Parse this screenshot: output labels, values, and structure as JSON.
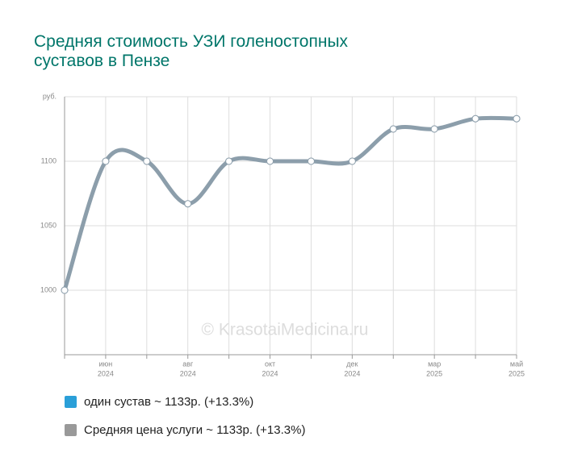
{
  "chart_data": {
    "type": "line",
    "title": "Средняя стоимость УЗИ голеностопных суставов в Пензе",
    "watermark": "© KrasotaiMedicina.ru",
    "categories": [
      null,
      "июн",
      null,
      "авг",
      null,
      "окт",
      null,
      "дек",
      null,
      "мар",
      null,
      "май"
    ],
    "category_years": [
      null,
      "2024",
      null,
      "2024",
      null,
      "2024",
      null,
      "2024",
      null,
      "2025",
      null,
      "2025"
    ],
    "series": [
      {
        "name": "один сустав ~ 1133р. (+13.3%)",
        "color": "#2a9fd8",
        "values": [
          1000,
          1100,
          1100,
          1067,
          1100,
          1100,
          1100,
          1100,
          1125,
          1125,
          1133,
          1133
        ]
      },
      {
        "name": "Средняя цена услуги ~ 1133р. (+13.3%)",
        "color": "#999999",
        "values": [
          1000,
          1100,
          1100,
          1067,
          1100,
          1100,
          1100,
          1100,
          1125,
          1125,
          1133,
          1133
        ]
      }
    ],
    "line_color": "#8c9eab",
    "ylim": [
      950,
      1150
    ],
    "yticks": [
      1000,
      1050,
      1100,
      {
        "value": 1150,
        "label": "руб."
      }
    ],
    "grid": true
  }
}
